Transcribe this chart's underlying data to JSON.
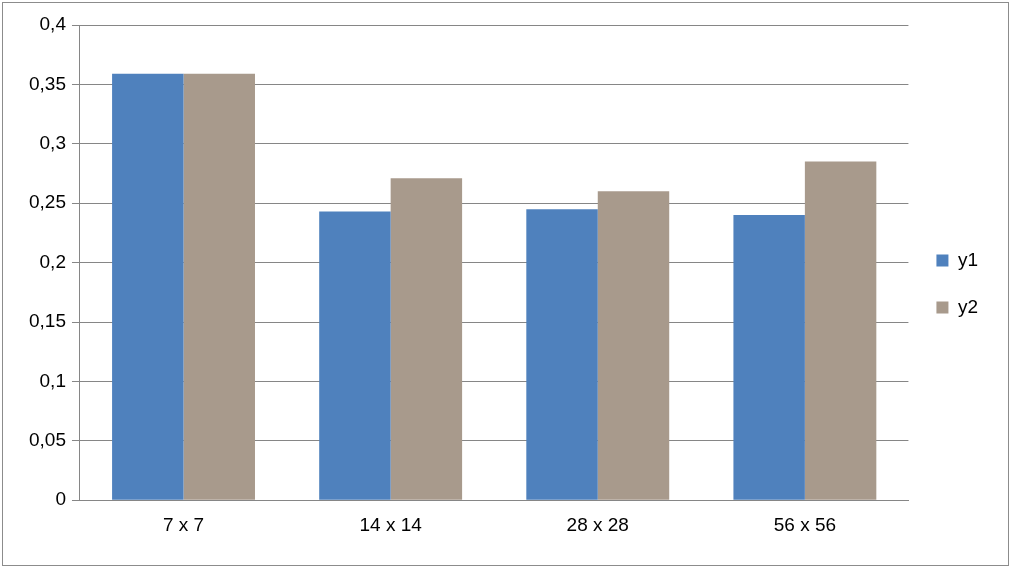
{
  "chart_data": {
    "type": "bar",
    "categories": [
      "7 x 7",
      "14 x 14",
      "28 x 28",
      "56 x 56"
    ],
    "series": [
      {
        "name": "y1",
        "color": "#4f81bd",
        "values": [
          0.359,
          0.243,
          0.245,
          0.24
        ]
      },
      {
        "name": "y2",
        "color": "#a89a8c",
        "values": [
          0.359,
          0.271,
          0.26,
          0.285
        ]
      }
    ],
    "ylim": [
      0,
      0.4
    ],
    "yticks": [
      {
        "value": 0,
        "label": "0"
      },
      {
        "value": 0.05,
        "label": "0,05"
      },
      {
        "value": 0.1,
        "label": "0,1"
      },
      {
        "value": 0.15,
        "label": "0,15"
      },
      {
        "value": 0.2,
        "label": "0,2"
      },
      {
        "value": 0.25,
        "label": "0,25"
      },
      {
        "value": 0.3,
        "label": "0,3"
      },
      {
        "value": 0.35,
        "label": "0,35"
      },
      {
        "value": 0.4,
        "label": "0,4"
      }
    ],
    "grid": "y",
    "legend": "right"
  }
}
